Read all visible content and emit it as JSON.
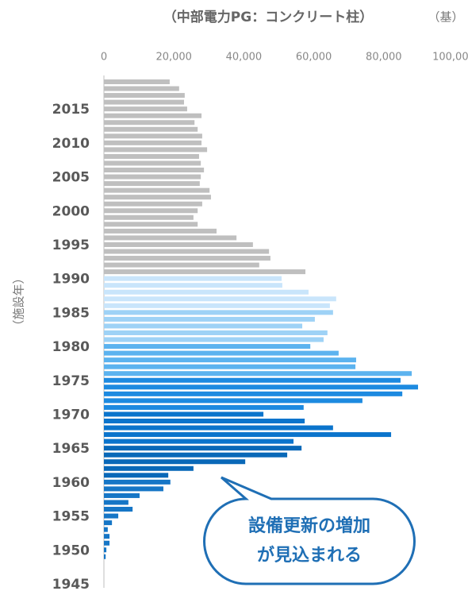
{
  "chart_data": {
    "type": "barh",
    "title": "（中部電力PG：コンクリート柱）",
    "unit_label": "（基）",
    "y_axis_label": "（施設年）",
    "annotation": [
      "設備更新の増加",
      "が見込まれる"
    ],
    "categories": [
      null,
      null,
      null,
      null,
      "2015",
      null,
      null,
      null,
      null,
      "2010",
      null,
      null,
      null,
      null,
      "2005",
      null,
      null,
      null,
      null,
      "2000",
      null,
      null,
      null,
      null,
      "1995",
      null,
      null,
      null,
      null,
      "1990",
      null,
      null,
      null,
      null,
      "1985",
      null,
      null,
      null,
      null,
      "1980",
      null,
      null,
      null,
      null,
      "1975",
      null,
      null,
      null,
      null,
      "1970",
      null,
      null,
      null,
      null,
      "1965",
      null,
      null,
      null,
      null,
      "1960",
      null,
      null,
      null,
      null,
      "1955",
      null,
      null,
      null,
      null,
      "1950",
      null,
      null,
      null,
      null,
      "1945"
    ],
    "values": [
      18800,
      21500,
      23100,
      22900,
      23800,
      27900,
      25900,
      26800,
      28100,
      27900,
      29500,
      27200,
      27700,
      28600,
      27700,
      27400,
      30200,
      30600,
      28100,
      26800,
      25600,
      26800,
      32200,
      37900,
      42600,
      47200,
      47600,
      44400,
      57600,
      50800,
      51000,
      58500,
      66400,
      64600,
      65500,
      60300,
      56700,
      63900,
      62800,
      59000,
      67100,
      72100,
      71900,
      88000,
      84800,
      89800,
      85300,
      73900,
      57100,
      45600,
      57400,
      65500,
      82100,
      54200,
      56500,
      52400,
      40400,
      25600,
      18400,
      19000,
      17000,
      10200,
      7000,
      8200,
      4100,
      2300,
      1100,
      1600,
      1600,
      700,
      500,
      0,
      0,
      0,
      0
    ],
    "colors": [
      "#bfbfbf",
      "#bfbfbf",
      "#bfbfbf",
      "#bfbfbf",
      "#bfbfbf",
      "#bfbfbf",
      "#bfbfbf",
      "#bfbfbf",
      "#bfbfbf",
      "#bfbfbf",
      "#bfbfbf",
      "#bfbfbf",
      "#bfbfbf",
      "#bfbfbf",
      "#bfbfbf",
      "#bfbfbf",
      "#bfbfbf",
      "#bfbfbf",
      "#bfbfbf",
      "#bfbfbf",
      "#bfbfbf",
      "#bfbfbf",
      "#bfbfbf",
      "#bfbfbf",
      "#bfbfbf",
      "#bfbfbf",
      "#bfbfbf",
      "#bfbfbf",
      "#bfbfbf",
      "#c9e5fb",
      "#c9e5fb",
      "#c9e5fb",
      "#c9e5fb",
      "#c9e5fb",
      "#9ed2f6",
      "#9ed2f6",
      "#9ed2f6",
      "#9ed2f6",
      "#9ed2f6",
      "#5cb3ef",
      "#5cb3ef",
      "#5cb3ef",
      "#5cb3ef",
      "#5cb3ef",
      "#1d8ae0",
      "#1d8ae0",
      "#1d8ae0",
      "#1d8ae0",
      "#1d8ae0",
      "#0b74cc",
      "#0b74cc",
      "#0b74cc",
      "#0b74cc",
      "#0b74cc",
      "#0968b8",
      "#0968b8",
      "#0968b8",
      "#0968b8",
      "#0968b8",
      "#1676c6",
      "#1676c6",
      "#1676c6",
      "#1676c6",
      "#1676c6",
      "#1676c6",
      "#1676c6",
      "#1676c6",
      "#1676c6",
      "#1676c6",
      "#1676c6",
      "#1676c6",
      "#1676c6",
      "#1676c6",
      "#1676c6",
      "#1676c6"
    ],
    "xlim": [
      0,
      100000
    ],
    "xticks": [
      0,
      {
        "value": 20000,
        "label": "20,000"
      },
      {
        "value": 40000,
        "label": "40,000"
      },
      {
        "value": 60000,
        "label": "60,000"
      },
      {
        "value": 80000,
        "label": "80,000"
      },
      {
        "value": 100000,
        "label": "100,000"
      }
    ],
    "grid": false
  }
}
